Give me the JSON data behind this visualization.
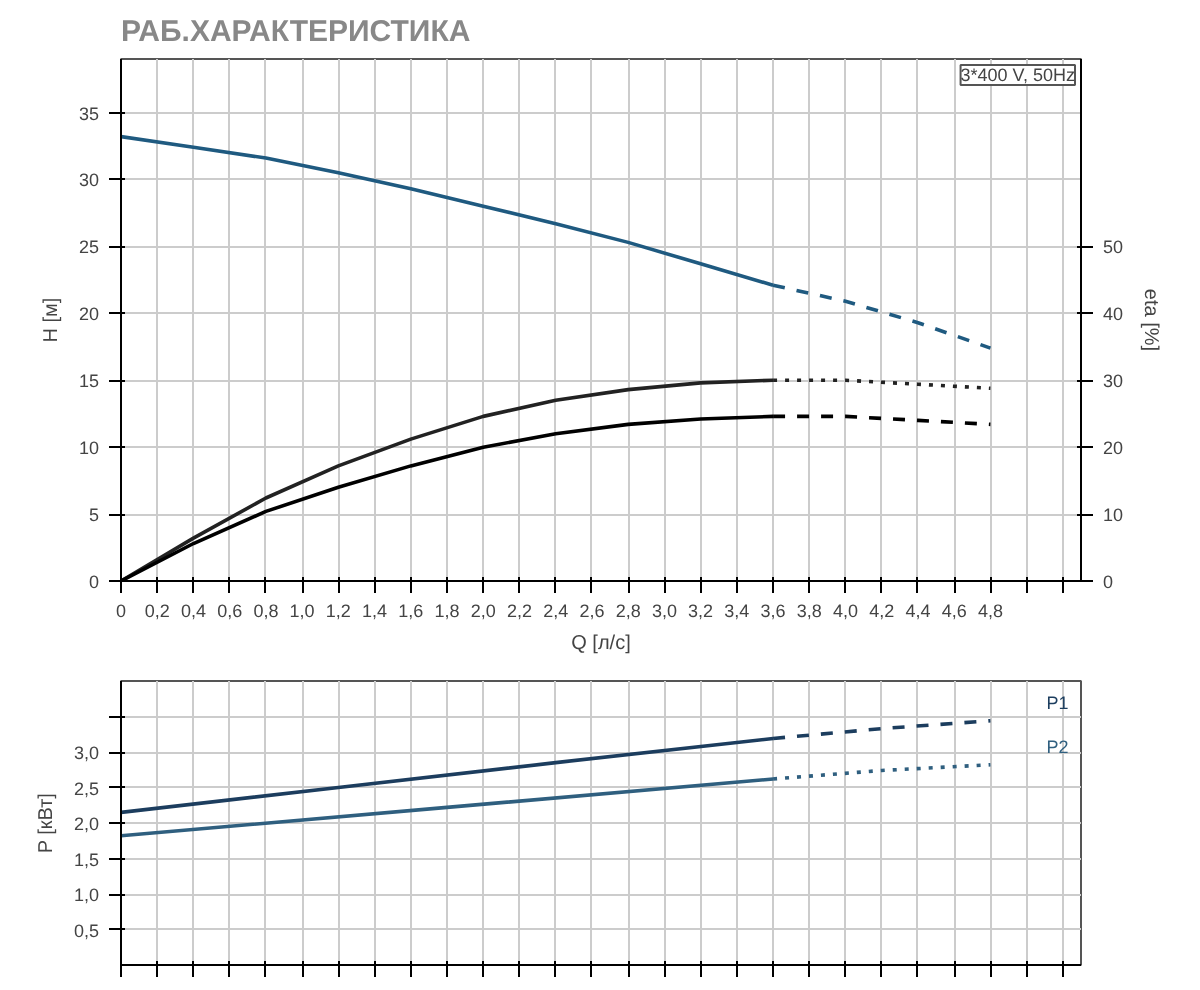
{
  "chart_data": [
    {
      "type": "line",
      "title": "РАБ.ХАРАКТЕРИСТИКА",
      "xlabel": "Q [л/с]",
      "ylabel": "H [м]",
      "y2label": "eta [%]",
      "xlim": [
        0,
        5.3
      ],
      "xticks": [
        0,
        {
          "value": 0.2,
          "label": "0,2"
        },
        {
          "value": 0.4,
          "label": "0,4"
        },
        {
          "value": 0.6,
          "label": "0,6"
        },
        {
          "value": 0.8,
          "label": "0,8"
        },
        {
          "value": 1.0,
          "label": "1,0"
        },
        {
          "value": 1.2,
          "label": "1,2"
        },
        {
          "value": 1.4,
          "label": "1,4"
        },
        {
          "value": 1.6,
          "label": "1,6"
        },
        {
          "value": 1.8,
          "label": "1,8"
        },
        {
          "value": 2.0,
          "label": "2,0"
        },
        {
          "value": 2.2,
          "label": "2,2"
        },
        {
          "value": 2.4,
          "label": "2,4"
        },
        {
          "value": 2.6,
          "label": "2,6"
        },
        {
          "value": 2.8,
          "label": "2,8"
        },
        {
          "value": 3.0,
          "label": "3,0"
        },
        {
          "value": 3.2,
          "label": "3,2"
        },
        {
          "value": 3.4,
          "label": "3,4"
        },
        {
          "value": 3.6,
          "label": "3,6"
        },
        {
          "value": 3.8,
          "label": "3,8"
        },
        {
          "value": 4.0,
          "label": "4,0"
        },
        {
          "value": 4.2,
          "label": "4,2"
        },
        {
          "value": 4.4,
          "label": "4,4"
        },
        {
          "value": 4.6,
          "label": "4,6"
        },
        {
          "value": 4.8,
          "label": "4,8"
        },
        {
          "value": 5.0,
          "label": null
        },
        {
          "value": 5.2,
          "label": null
        }
      ],
      "ylim": [
        0,
        39
      ],
      "yticks": [
        0,
        5,
        10,
        15,
        20,
        25,
        30,
        35
      ],
      "y2lim": [
        0,
        78
      ],
      "y2ticks": [
        0,
        10,
        20,
        30,
        40,
        50
      ],
      "grid": true,
      "annotations": [
        "3*400 V, 50Hz"
      ],
      "series": [
        {
          "color": "#1f5a80",
          "line_style": "solid",
          "x": [
            0,
            0.4,
            0.8,
            1.2,
            1.6,
            2.0,
            2.4,
            2.8,
            3.2,
            3.6
          ],
          "values": [
            33.2,
            32.4,
            31.6,
            30.5,
            29.3,
            28.0,
            26.7,
            25.3,
            23.7,
            22.1
          ]
        },
        {
          "color": "#1f5a80",
          "line_style": "dashed",
          "x": [
            3.6,
            4.0,
            4.4,
            4.8
          ],
          "values": [
            22.1,
            20.9,
            19.3,
            17.4
          ]
        },
        {
          "color": "#222222",
          "line_style": "solid",
          "axis": "y2",
          "x": [
            0,
            0.4,
            0.8,
            1.2,
            1.6,
            2.0,
            2.4,
            2.8,
            3.2,
            3.6
          ],
          "values": [
            0,
            6.4,
            12.4,
            17.2,
            21.2,
            24.6,
            27.0,
            28.6,
            29.6,
            30.0
          ]
        },
        {
          "color": "#222222",
          "line_style": "dotted",
          "axis": "y2",
          "x": [
            3.6,
            4.0,
            4.4,
            4.8
          ],
          "values": [
            30.0,
            30.0,
            29.4,
            28.8
          ]
        },
        {
          "color": "#000000",
          "line_style": "solid",
          "axis": "y2",
          "x": [
            0,
            0.4,
            0.8,
            1.2,
            1.6,
            2.0,
            2.4,
            2.8,
            3.2,
            3.6
          ],
          "values": [
            0,
            5.6,
            10.4,
            14.0,
            17.2,
            20.0,
            22.0,
            23.4,
            24.2,
            24.6
          ]
        },
        {
          "color": "#000000",
          "line_style": "dashed",
          "axis": "y2",
          "x": [
            3.6,
            4.0,
            4.4,
            4.8
          ],
          "values": [
            24.6,
            24.6,
            24.0,
            23.4
          ]
        }
      ]
    },
    {
      "type": "line",
      "ylabel": "P [кВт]",
      "xlim": [
        0,
        5.3
      ],
      "xticks": [
        0,
        0.2,
        0.4,
        0.6,
        0.8,
        1.0,
        1.2,
        1.4,
        1.6,
        1.8,
        2.0,
        2.2,
        2.4,
        2.6,
        2.8,
        3.0,
        3.2,
        3.4,
        3.6,
        3.8,
        4.0,
        4.2,
        4.4,
        4.6,
        4.8,
        5.0,
        5.2
      ],
      "tick_labels": "y",
      "ylim": [
        0,
        4.0
      ],
      "yticks": [
        {
          "value": 0.5,
          "label": "0,5"
        },
        {
          "value": 1.0,
          "label": "1,0"
        },
        {
          "value": 1.5,
          "label": "1,5"
        },
        {
          "value": 2.0,
          "label": "2,0"
        },
        {
          "value": 2.5,
          "label": "2,5"
        },
        {
          "value": 3.0,
          "label": "3,0"
        },
        {
          "value": 3.5,
          "label": null
        }
      ],
      "grid": true,
      "series": [
        {
          "color": "#1c3d5e",
          "line_style": "solid",
          "x": [
            0,
            1.2,
            2.4,
            3.6
          ],
          "values": [
            2.15,
            2.5,
            2.85,
            3.19
          ]
        },
        {
          "name": "P1",
          "color": "#1c3d5e",
          "line_style": "dashed",
          "x": [
            3.6,
            4.2,
            4.8
          ],
          "values": [
            3.19,
            3.33,
            3.44
          ]
        },
        {
          "color": "#2f5f7f",
          "line_style": "solid",
          "x": [
            0,
            1.8,
            3.6
          ],
          "values": [
            1.82,
            2.22,
            2.62
          ]
        },
        {
          "name": "P2",
          "color": "#2f5f7f",
          "line_style": "dotted",
          "x": [
            3.6,
            4.2,
            4.8
          ],
          "values": [
            2.62,
            2.74,
            2.82
          ]
        }
      ]
    }
  ]
}
